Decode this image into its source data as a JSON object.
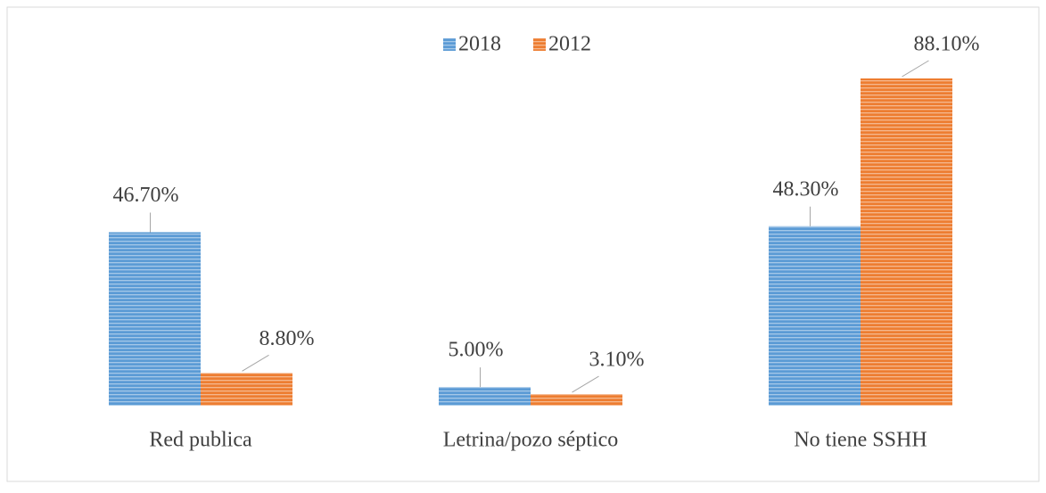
{
  "chart_data": {
    "type": "bar",
    "categories": [
      "Red publica",
      "Letrina/pozo séptico",
      "No tiene SSHH"
    ],
    "series": [
      {
        "name": "2018",
        "color": "#5b9bd5",
        "values": [
          46.7,
          5.0,
          48.3
        ],
        "value_labels": [
          "46.70%",
          "5.00%",
          "48.30%"
        ]
      },
      {
        "name": "2012",
        "color": "#ed7d31",
        "values": [
          8.8,
          3.1,
          88.1
        ],
        "value_labels": [
          "8.80%",
          "3.10%",
          "88.10%"
        ]
      }
    ],
    "legend": "top"
  }
}
